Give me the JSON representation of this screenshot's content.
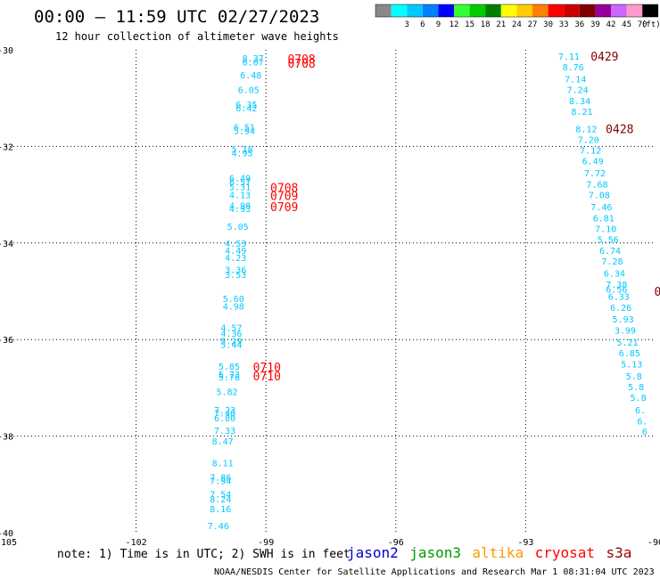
{
  "title": "00:00 — 11:59 UTC 02/27/2023",
  "subtitle": "12 hour collection of altimeter wave heights",
  "note": "note:  1) Time is in UTC; 2) SWH is in feet",
  "credit": "NOAA/NESDIS Center for Satellite Applications and Research    Mar  1 08:31:04 UTC 2023",
  "satellites": [
    {
      "name": "jason2",
      "color": "#0000cc"
    },
    {
      "name": "jason3",
      "color": "#009900"
    },
    {
      "name": "altika",
      "color": "#ff9900"
    },
    {
      "name": "cryosat",
      "color": "#ff0000"
    },
    {
      "name": "s3a",
      "color": "#990000"
    }
  ],
  "legend": {
    "unit": "(ft)",
    "entries": [
      {
        "label": "",
        "color": "#888888"
      },
      {
        "label": "3",
        "color": "#00ffff"
      },
      {
        "label": "6",
        "color": "#00c8ff"
      },
      {
        "label": "9",
        "color": "#0080ff"
      },
      {
        "label": "12",
        "color": "#0000ff"
      },
      {
        "label": "15",
        "color": "#33ff33"
      },
      {
        "label": "18",
        "color": "#00cc00"
      },
      {
        "label": "21",
        "color": "#008000"
      },
      {
        "label": "24",
        "color": "#ffff00"
      },
      {
        "label": "27",
        "color": "#ffcc00"
      },
      {
        "label": "30",
        "color": "#ff8000"
      },
      {
        "label": "33",
        "color": "#ff0000"
      },
      {
        "label": "36",
        "color": "#cc0000"
      },
      {
        "label": "39",
        "color": "#800000"
      },
      {
        "label": "42",
        "color": "#990099"
      },
      {
        "label": "45",
        "color": "#cc66ff"
      },
      {
        "label": "70",
        "color": "#ff99cc"
      },
      {
        "label": "",
        "color": "#000000"
      }
    ]
  },
  "chart_data": {
    "type": "scatter",
    "xlim": [
      -105,
      -90
    ],
    "ylim": [
      -40,
      -30
    ],
    "xticks": [
      -105,
      -102,
      -99,
      -96,
      -93,
      -90
    ],
    "yticks": [
      -30,
      -32,
      -34,
      -36,
      -38,
      -40
    ],
    "xtick_labels": [
      "-105",
      "-102",
      "-99",
      "-96",
      "-93",
      "-90"
    ],
    "ytick_labels": [
      "-30",
      "-32",
      "-34",
      "-36",
      "-38",
      "-40"
    ],
    "grid": true,
    "swh_color": "#00c8ff",
    "series": [
      {
        "points": [
          {
            "lon": -99.3,
            "lat": -30.17,
            "swh": "8.37"
          },
          {
            "lon": -99.3,
            "lat": -30.25,
            "swh": "6.07"
          },
          {
            "lon": -99.35,
            "lat": -30.52,
            "swh": "6.48"
          },
          {
            "lon": -99.4,
            "lat": -30.82,
            "swh": "6.05"
          },
          {
            "lon": -99.45,
            "lat": -31.13,
            "swh": "6.35"
          },
          {
            "lon": -99.45,
            "lat": -31.2,
            "swh": "6.42"
          },
          {
            "lon": -99.5,
            "lat": -31.6,
            "swh": "6.51"
          },
          {
            "lon": -99.5,
            "lat": -31.67,
            "swh": "5.94"
          },
          {
            "lon": -99.55,
            "lat": -32.05,
            "swh": "5.18"
          },
          {
            "lon": -99.55,
            "lat": -32.13,
            "swh": "4.95"
          },
          {
            "lon": -99.6,
            "lat": -32.65,
            "swh": "6.49"
          },
          {
            "lon": -99.6,
            "lat": -32.73,
            "swh": "6.57"
          },
          {
            "lon": -99.6,
            "lat": -32.83,
            "swh": "5.31"
          },
          {
            "lon": -99.6,
            "lat": -33.0,
            "swh": "4.13"
          },
          {
            "lon": -99.6,
            "lat": -33.22,
            "swh": "4.98"
          },
          {
            "lon": -99.6,
            "lat": -33.28,
            "swh": "4.93"
          },
          {
            "lon": -99.65,
            "lat": -33.65,
            "swh": "5.05"
          },
          {
            "lon": -99.7,
            "lat": -34.0,
            "swh": "4.53"
          },
          {
            "lon": -99.7,
            "lat": -34.15,
            "swh": "4.49"
          },
          {
            "lon": -99.7,
            "lat": -34.3,
            "swh": "4.23"
          },
          {
            "lon": -99.7,
            "lat": -34.55,
            "swh": "3.36"
          },
          {
            "lon": -99.7,
            "lat": -34.65,
            "swh": "3.53"
          },
          {
            "lon": -99.75,
            "lat": -35.15,
            "swh": "5.60"
          },
          {
            "lon": -99.75,
            "lat": -35.3,
            "swh": "4.98"
          },
          {
            "lon": -99.8,
            "lat": -35.75,
            "swh": "4.57"
          },
          {
            "lon": -99.8,
            "lat": -35.87,
            "swh": "4.36"
          },
          {
            "lon": -99.8,
            "lat": -36.02,
            "swh": "5.29"
          },
          {
            "lon": -99.8,
            "lat": -36.1,
            "swh": "5.44"
          },
          {
            "lon": -99.85,
            "lat": -36.55,
            "swh": "5.85"
          },
          {
            "lon": -99.85,
            "lat": -36.72,
            "swh": "5.73"
          },
          {
            "lon": -99.85,
            "lat": -36.77,
            "swh": "5.78"
          },
          {
            "lon": -99.9,
            "lat": -37.08,
            "swh": "5.82"
          },
          {
            "lon": -99.95,
            "lat": -37.45,
            "swh": "7.23"
          },
          {
            "lon": -99.95,
            "lat": -37.52,
            "swh": "7.40"
          },
          {
            "lon": -99.95,
            "lat": -37.62,
            "swh": "6.80"
          },
          {
            "lon": -99.95,
            "lat": -37.88,
            "swh": "7.33"
          },
          {
            "lon": -100.0,
            "lat": -38.1,
            "swh": "8.47"
          },
          {
            "lon": -100.0,
            "lat": -38.55,
            "swh": "8.11"
          },
          {
            "lon": -100.05,
            "lat": -38.85,
            "swh": "7.86"
          },
          {
            "lon": -100.05,
            "lat": -38.92,
            "swh": "7.94"
          },
          {
            "lon": -100.05,
            "lat": -39.2,
            "swh": "7.54"
          },
          {
            "lon": -100.05,
            "lat": -39.3,
            "swh": "8.24"
          },
          {
            "lon": -100.05,
            "lat": -39.5,
            "swh": "8.16"
          },
          {
            "lon": -100.1,
            "lat": -39.85,
            "swh": "7.46"
          }
        ]
      },
      {
        "points": [
          {
            "lon": -92.0,
            "lat": -30.13,
            "swh": "7.11"
          },
          {
            "lon": -91.9,
            "lat": -30.35,
            "swh": "8.76"
          },
          {
            "lon": -91.85,
            "lat": -30.6,
            "swh": "7.14"
          },
          {
            "lon": -91.8,
            "lat": -30.82,
            "swh": "7.24"
          },
          {
            "lon": -91.75,
            "lat": -31.05,
            "swh": "8.34"
          },
          {
            "lon": -91.7,
            "lat": -31.27,
            "swh": "8.21"
          },
          {
            "lon": -91.6,
            "lat": -31.63,
            "swh": "8.12"
          },
          {
            "lon": -91.55,
            "lat": -31.85,
            "swh": "7.20"
          },
          {
            "lon": -91.5,
            "lat": -32.08,
            "swh": "7.12"
          },
          {
            "lon": -91.45,
            "lat": -32.3,
            "swh": "6.49"
          },
          {
            "lon": -91.4,
            "lat": -32.55,
            "swh": "7.72"
          },
          {
            "lon": -91.35,
            "lat": -32.78,
            "swh": "7.68"
          },
          {
            "lon": -91.3,
            "lat": -33.0,
            "swh": "7.08"
          },
          {
            "lon": -91.25,
            "lat": -33.25,
            "swh": "7.46"
          },
          {
            "lon": -91.2,
            "lat": -33.48,
            "swh": "6.81"
          },
          {
            "lon": -91.15,
            "lat": -33.7,
            "swh": "7.10"
          },
          {
            "lon": -91.1,
            "lat": -33.92,
            "swh": "5.56"
          },
          {
            "lon": -91.05,
            "lat": -34.15,
            "swh": "6.74"
          },
          {
            "lon": -91.0,
            "lat": -34.37,
            "swh": "7.28"
          },
          {
            "lon": -90.95,
            "lat": -34.62,
            "swh": "6.34"
          },
          {
            "lon": -90.9,
            "lat": -34.85,
            "swh": "7.38"
          },
          {
            "lon": -90.9,
            "lat": -34.95,
            "swh": "6.56"
          },
          {
            "lon": -90.85,
            "lat": -35.1,
            "swh": "6.33"
          },
          {
            "lon": -90.8,
            "lat": -35.33,
            "swh": "6.26"
          },
          {
            "lon": -90.75,
            "lat": -35.57,
            "swh": "5.93"
          },
          {
            "lon": -90.7,
            "lat": -35.8,
            "swh": "3.99"
          },
          {
            "lon": -90.65,
            "lat": -36.05,
            "swh": "5.21"
          },
          {
            "lon": -90.6,
            "lat": -36.27,
            "swh": "6.85"
          },
          {
            "lon": -90.55,
            "lat": -36.5,
            "swh": "5.13"
          },
          {
            "lon": -90.5,
            "lat": -36.75,
            "swh": "5.8"
          },
          {
            "lon": -90.45,
            "lat": -36.97,
            "swh": "5.8"
          },
          {
            "lon": -90.4,
            "lat": -37.2,
            "swh": "5.8"
          },
          {
            "lon": -90.35,
            "lat": -37.45,
            "swh": "6."
          },
          {
            "lon": -90.3,
            "lat": -37.68,
            "swh": "6."
          },
          {
            "lon": -90.25,
            "lat": -37.9,
            "swh": "6"
          }
        ]
      }
    ],
    "time_tags": [
      {
        "lon": -98.5,
        "lat": -30.18,
        "time": "0708",
        "color": "#ff0000"
      },
      {
        "lon": -98.5,
        "lat": -30.28,
        "time": "0708",
        "color": "#ff0000"
      },
      {
        "lon": -98.9,
        "lat": -32.85,
        "time": "0708",
        "color": "#ff0000"
      },
      {
        "lon": -98.9,
        "lat": -33.02,
        "time": "0709",
        "color": "#ff0000"
      },
      {
        "lon": -98.9,
        "lat": -33.25,
        "time": "0709",
        "color": "#ff0000"
      },
      {
        "lon": -99.3,
        "lat": -36.57,
        "time": "0710",
        "color": "#ff0000"
      },
      {
        "lon": -99.3,
        "lat": -36.75,
        "time": "0710",
        "color": "#ff0000"
      },
      {
        "lon": -91.5,
        "lat": -30.13,
        "time": "0429",
        "color": "#800000"
      },
      {
        "lon": -91.15,
        "lat": -31.63,
        "time": "0428",
        "color": "#800000"
      },
      {
        "lon": -90.03,
        "lat": -35.0,
        "time": "0",
        "color": "#800000"
      }
    ]
  }
}
